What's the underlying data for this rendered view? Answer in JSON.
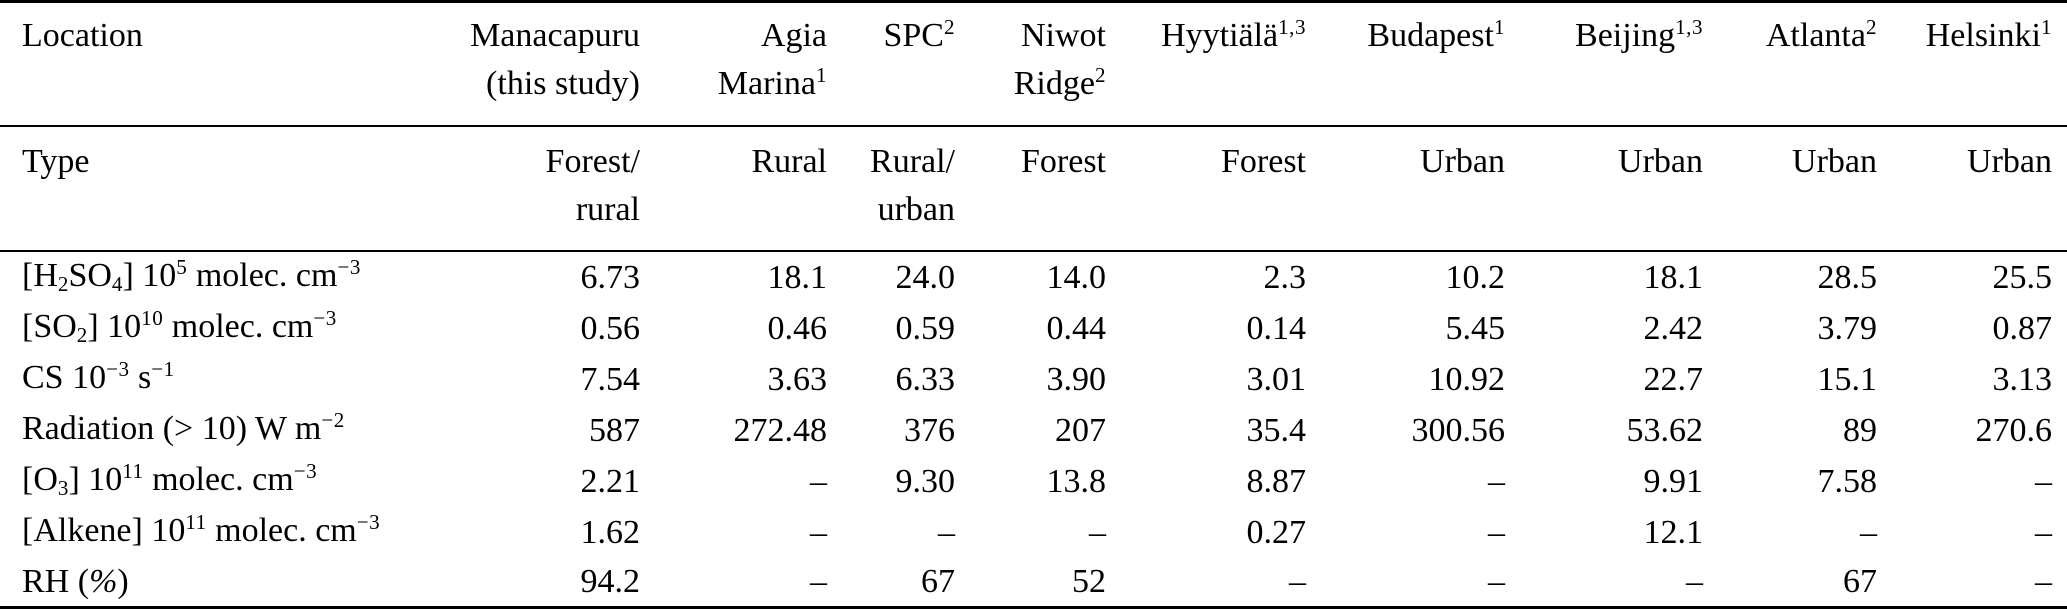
{
  "table": {
    "header": {
      "location_label": "Location",
      "columns": [
        {
          "key": "manacapuru",
          "lines": [
            {
              "text": "Manacapuru"
            },
            {
              "text": "(this study)"
            }
          ]
        },
        {
          "key": "agia-marina",
          "lines": [
            {
              "text": "Agia"
            },
            {
              "text": "Marina",
              "sup": "1"
            }
          ]
        },
        {
          "key": "spc",
          "lines": [
            {
              "text": "SPC",
              "sup": "2"
            }
          ]
        },
        {
          "key": "niwot-ridge",
          "lines": [
            {
              "text": "Niwot"
            },
            {
              "text": "Ridge",
              "sup": "2"
            }
          ]
        },
        {
          "key": "hyytiala",
          "lines": [
            {
              "text": "Hyytiälä",
              "sup": "1,3"
            }
          ]
        },
        {
          "key": "budapest",
          "lines": [
            {
              "text": "Budapest",
              "sup": "1"
            }
          ]
        },
        {
          "key": "beijing",
          "lines": [
            {
              "text": "Beijing",
              "sup": "1,3"
            }
          ]
        },
        {
          "key": "atlanta",
          "lines": [
            {
              "text": "Atlanta",
              "sup": "2"
            }
          ]
        },
        {
          "key": "helsinki",
          "lines": [
            {
              "text": "Helsinki",
              "sup": "1"
            }
          ]
        }
      ]
    },
    "type_row": {
      "label": "Type",
      "values": [
        [
          "Forest/",
          "rural"
        ],
        [
          "Rural"
        ],
        [
          "Rural/",
          "urban"
        ],
        [
          "Forest"
        ],
        [
          "Forest"
        ],
        [
          "Urban"
        ],
        [
          "Urban"
        ],
        [
          "Urban"
        ],
        [
          "Urban"
        ]
      ]
    },
    "rows": [
      {
        "name": "h2so4",
        "label_parts": [
          {
            "t": "text",
            "v": "[H"
          },
          {
            "t": "sub",
            "v": "2"
          },
          {
            "t": "text",
            "v": "SO"
          },
          {
            "t": "sub",
            "v": "4"
          },
          {
            "t": "text",
            "v": "] 10"
          },
          {
            "t": "sup",
            "v": "5"
          },
          {
            "t": "text",
            "v": " molec. cm"
          },
          {
            "t": "sup",
            "v": "−3"
          }
        ],
        "values": [
          "6.73",
          "18.1",
          "24.0",
          "14.0",
          "2.3",
          "10.2",
          "18.1",
          "28.5",
          "25.5"
        ]
      },
      {
        "name": "so2",
        "label_parts": [
          {
            "t": "text",
            "v": "[SO"
          },
          {
            "t": "sub",
            "v": "2"
          },
          {
            "t": "text",
            "v": "] 10"
          },
          {
            "t": "sup",
            "v": "10"
          },
          {
            "t": "text",
            "v": " molec. cm"
          },
          {
            "t": "sup",
            "v": "−3"
          }
        ],
        "values": [
          "0.56",
          "0.46",
          "0.59",
          "0.44",
          "0.14",
          "5.45",
          "2.42",
          "3.79",
          "0.87"
        ]
      },
      {
        "name": "cs",
        "label_parts": [
          {
            "t": "text",
            "v": "CS 10"
          },
          {
            "t": "sup",
            "v": "−3"
          },
          {
            "t": "text",
            "v": " s"
          },
          {
            "t": "sup",
            "v": "−1"
          }
        ],
        "values": [
          "7.54",
          "3.63",
          "6.33",
          "3.90",
          "3.01",
          "10.92",
          "22.7",
          "15.1",
          "3.13"
        ]
      },
      {
        "name": "radiation",
        "label_parts": [
          {
            "t": "text",
            "v": "Radiation (> 10) W m"
          },
          {
            "t": "sup",
            "v": "−2"
          }
        ],
        "values": [
          "587",
          "272.48",
          "376",
          "207",
          "35.4",
          "300.56",
          "53.62",
          "89",
          "270.6"
        ]
      },
      {
        "name": "o3",
        "label_parts": [
          {
            "t": "text",
            "v": "[O"
          },
          {
            "t": "sub",
            "v": "3"
          },
          {
            "t": "text",
            "v": "] 10"
          },
          {
            "t": "sup",
            "v": "11"
          },
          {
            "t": "text",
            "v": " molec. cm"
          },
          {
            "t": "sup",
            "v": "−3"
          }
        ],
        "values": [
          "2.21",
          "–",
          "9.30",
          "13.8",
          "8.87",
          "–",
          "9.91",
          "7.58",
          "–"
        ]
      },
      {
        "name": "alkene",
        "label_parts": [
          {
            "t": "text",
            "v": "[Alkene] 10"
          },
          {
            "t": "sup",
            "v": "11"
          },
          {
            "t": "text",
            "v": " molec. cm"
          },
          {
            "t": "sup",
            "v": "−3"
          }
        ],
        "values": [
          "1.62",
          "–",
          "–",
          "–",
          "0.27",
          "–",
          "12.1",
          "–",
          "–"
        ]
      },
      {
        "name": "rh",
        "label_parts": [
          {
            "t": "text",
            "v": "RH ("
          },
          {
            "t": "i",
            "v": "%"
          },
          {
            "t": "text",
            "v": ")"
          }
        ],
        "values": [
          "94.2",
          "–",
          "67",
          "52",
          "–",
          "–",
          "–",
          "67",
          "–"
        ]
      }
    ]
  }
}
